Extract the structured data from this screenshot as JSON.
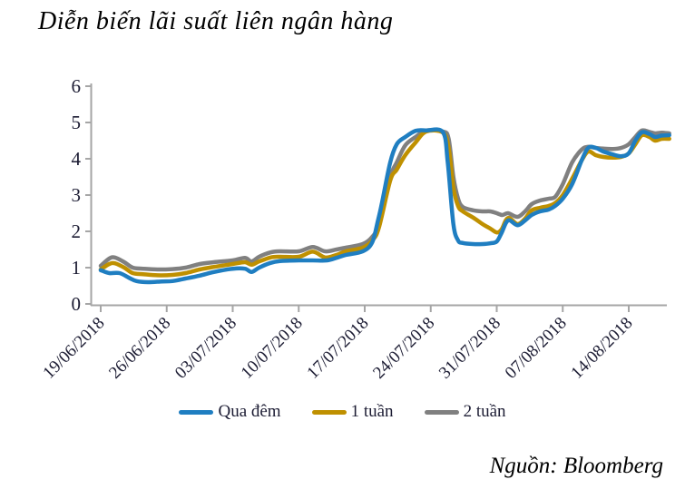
{
  "page": {
    "title": "Diễn biến lãi suất liên ngân hàng",
    "source": "Nguồn: Bloomberg"
  },
  "colors": {
    "overnight": "#1F7EC1",
    "one_week": "#BF9000",
    "two_week": "#808080",
    "axis": "#A6A6A6",
    "tick_text": "#1c1c33"
  },
  "chart_data": {
    "type": "line",
    "title": "Diễn biến lãi suất liên ngân hàng",
    "xlabel": "",
    "ylabel": "",
    "ylim": [
      0,
      6
    ],
    "y_ticks": [
      0,
      1,
      2,
      3,
      4,
      5,
      6
    ],
    "grid": false,
    "legend_position": "bottom",
    "x_unit": "days_since_first_tick",
    "x_domain_days": [
      0,
      60.3
    ],
    "x_tick_days": [
      0,
      7,
      14,
      21,
      28,
      35,
      42,
      49,
      56
    ],
    "x_tick_labels": [
      "19/06/2018",
      "26/06/2018",
      "03/07/2018",
      "10/07/2018",
      "17/07/2018",
      "24/07/2018",
      "31/07/2018",
      "07/08/2018",
      "14/08/2018"
    ],
    "series": [
      {
        "name": "Qua đêm",
        "color": "#1F7EC1",
        "points": [
          [
            0,
            0.93
          ],
          [
            0.9,
            0.85
          ],
          [
            2,
            0.85
          ],
          [
            3,
            0.72
          ],
          [
            3.8,
            0.63
          ],
          [
            5,
            0.6
          ],
          [
            6.5,
            0.62
          ],
          [
            7.6,
            0.63
          ],
          [
            9,
            0.7
          ],
          [
            10.5,
            0.78
          ],
          [
            12,
            0.88
          ],
          [
            14,
            0.97
          ],
          [
            15.3,
            0.97
          ],
          [
            16,
            0.88
          ],
          [
            16.8,
            1.0
          ],
          [
            18,
            1.13
          ],
          [
            19,
            1.18
          ],
          [
            21,
            1.2
          ],
          [
            22.5,
            1.2
          ],
          [
            24,
            1.2
          ],
          [
            25,
            1.27
          ],
          [
            26,
            1.35
          ],
          [
            27.8,
            1.45
          ],
          [
            28.8,
            1.7
          ],
          [
            29.4,
            2.3
          ],
          [
            29.8,
            2.75
          ],
          [
            30.7,
            3.9
          ],
          [
            31.4,
            4.4
          ],
          [
            32.3,
            4.6
          ],
          [
            33.4,
            4.77
          ],
          [
            34.5,
            4.78
          ],
          [
            36.3,
            4.73
          ],
          [
            36.8,
            3.9
          ],
          [
            37.4,
            2.2
          ],
          [
            37.9,
            1.75
          ],
          [
            38.4,
            1.68
          ],
          [
            39.5,
            1.65
          ],
          [
            40.5,
            1.65
          ],
          [
            41.3,
            1.67
          ],
          [
            42,
            1.72
          ],
          [
            42.5,
            1.95
          ],
          [
            43.2,
            2.3
          ],
          [
            44.2,
            2.17
          ],
          [
            45,
            2.3
          ],
          [
            45.7,
            2.45
          ],
          [
            46.6,
            2.55
          ],
          [
            47.5,
            2.6
          ],
          [
            48.2,
            2.7
          ],
          [
            49,
            2.9
          ],
          [
            50,
            3.3
          ],
          [
            51,
            3.95
          ],
          [
            51.7,
            4.3
          ],
          [
            52.5,
            4.3
          ],
          [
            53.3,
            4.2
          ],
          [
            54.3,
            4.12
          ],
          [
            55.2,
            4.07
          ],
          [
            56,
            4.15
          ],
          [
            56.7,
            4.5
          ],
          [
            57.4,
            4.73
          ],
          [
            58.2,
            4.68
          ],
          [
            58.8,
            4.6
          ],
          [
            59.5,
            4.64
          ],
          [
            60.3,
            4.65
          ]
        ]
      },
      {
        "name": "1 tuần",
        "color": "#BF9000",
        "points": [
          [
            0,
            0.95
          ],
          [
            0.9,
            1.1
          ],
          [
            1.5,
            1.12
          ],
          [
            2.5,
            1.0
          ],
          [
            3.4,
            0.85
          ],
          [
            4.5,
            0.82
          ],
          [
            6,
            0.79
          ],
          [
            7.6,
            0.8
          ],
          [
            9,
            0.85
          ],
          [
            10.5,
            0.95
          ],
          [
            12,
            1.02
          ],
          [
            14,
            1.1
          ],
          [
            15.3,
            1.15
          ],
          [
            16,
            1.08
          ],
          [
            16.8,
            1.17
          ],
          [
            18,
            1.28
          ],
          [
            19,
            1.3
          ],
          [
            21,
            1.3
          ],
          [
            22.5,
            1.44
          ],
          [
            23.8,
            1.28
          ],
          [
            25,
            1.35
          ],
          [
            26,
            1.45
          ],
          [
            27.8,
            1.55
          ],
          [
            28.8,
            1.75
          ],
          [
            29.5,
            2.1
          ],
          [
            30.7,
            3.4
          ],
          [
            31.4,
            3.7
          ],
          [
            32.3,
            4.1
          ],
          [
            33.4,
            4.45
          ],
          [
            34.5,
            4.75
          ],
          [
            36.3,
            4.72
          ],
          [
            36.9,
            4.3
          ],
          [
            37.4,
            3.2
          ],
          [
            37.9,
            2.7
          ],
          [
            38.4,
            2.55
          ],
          [
            39.5,
            2.38
          ],
          [
            40.5,
            2.2
          ],
          [
            41.3,
            2.08
          ],
          [
            42,
            1.97
          ],
          [
            42.5,
            2.05
          ],
          [
            43.2,
            2.37
          ],
          [
            44.2,
            2.2
          ],
          [
            45,
            2.35
          ],
          [
            45.7,
            2.58
          ],
          [
            46.6,
            2.65
          ],
          [
            47.5,
            2.7
          ],
          [
            48.2,
            2.78
          ],
          [
            49,
            3.0
          ],
          [
            50,
            3.45
          ],
          [
            51,
            3.95
          ],
          [
            51.7,
            4.2
          ],
          [
            52.5,
            4.1
          ],
          [
            53.3,
            4.05
          ],
          [
            54.3,
            4.03
          ],
          [
            55.2,
            4.05
          ],
          [
            56,
            4.15
          ],
          [
            56.7,
            4.4
          ],
          [
            57.4,
            4.65
          ],
          [
            58.2,
            4.6
          ],
          [
            58.8,
            4.5
          ],
          [
            59.5,
            4.55
          ],
          [
            60.3,
            4.55
          ]
        ]
      },
      {
        "name": "2 tuần",
        "color": "#808080",
        "points": [
          [
            0,
            1.05
          ],
          [
            0.9,
            1.25
          ],
          [
            1.5,
            1.28
          ],
          [
            2.5,
            1.15
          ],
          [
            3.4,
            1.0
          ],
          [
            4.5,
            0.97
          ],
          [
            6,
            0.95
          ],
          [
            7.6,
            0.96
          ],
          [
            9,
            1.0
          ],
          [
            10.5,
            1.1
          ],
          [
            12,
            1.15
          ],
          [
            14,
            1.2
          ],
          [
            15.3,
            1.27
          ],
          [
            16,
            1.17
          ],
          [
            16.8,
            1.3
          ],
          [
            18,
            1.42
          ],
          [
            19,
            1.45
          ],
          [
            21,
            1.45
          ],
          [
            22.5,
            1.57
          ],
          [
            23.8,
            1.45
          ],
          [
            25,
            1.5
          ],
          [
            26,
            1.55
          ],
          [
            27.8,
            1.65
          ],
          [
            28.8,
            1.85
          ],
          [
            29.5,
            2.2
          ],
          [
            30.7,
            3.5
          ],
          [
            31.4,
            3.9
          ],
          [
            32.3,
            4.37
          ],
          [
            33.4,
            4.6
          ],
          [
            34.5,
            4.78
          ],
          [
            36.3,
            4.75
          ],
          [
            36.9,
            4.55
          ],
          [
            37.4,
            3.5
          ],
          [
            37.9,
            2.9
          ],
          [
            38.4,
            2.67
          ],
          [
            39.5,
            2.58
          ],
          [
            40.5,
            2.55
          ],
          [
            41.3,
            2.55
          ],
          [
            42,
            2.5
          ],
          [
            42.6,
            2.45
          ],
          [
            43.2,
            2.5
          ],
          [
            44.2,
            2.4
          ],
          [
            45,
            2.55
          ],
          [
            45.7,
            2.75
          ],
          [
            46.6,
            2.85
          ],
          [
            47.5,
            2.9
          ],
          [
            48.2,
            2.95
          ],
          [
            49,
            3.3
          ],
          [
            50,
            3.9
          ],
          [
            51,
            4.25
          ],
          [
            51.7,
            4.33
          ],
          [
            52.5,
            4.3
          ],
          [
            53.3,
            4.28
          ],
          [
            54.3,
            4.27
          ],
          [
            55.2,
            4.3
          ],
          [
            56,
            4.4
          ],
          [
            56.7,
            4.6
          ],
          [
            57.4,
            4.78
          ],
          [
            58.2,
            4.74
          ],
          [
            58.8,
            4.7
          ],
          [
            59.5,
            4.72
          ],
          [
            60.3,
            4.7
          ]
        ]
      }
    ]
  }
}
